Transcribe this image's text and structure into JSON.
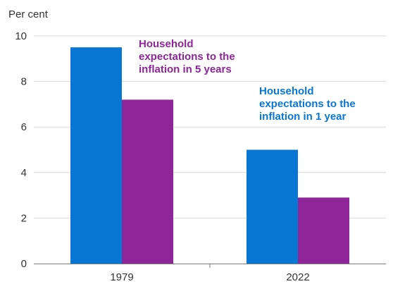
{
  "chart_data": {
    "type": "bar",
    "ylabel": "Per cent",
    "ylim": [
      0,
      10
    ],
    "yticks": [
      0,
      2,
      4,
      6,
      8,
      10
    ],
    "grid": true,
    "categories": [
      "1979",
      "2022"
    ],
    "series": [
      {
        "name": "Household expectations to the inflation in 1 year",
        "annotation_lines": [
          "Household",
          "expectations to the",
          "inflation in 1 year"
        ],
        "color": "#0877d3",
        "values": [
          9.5,
          5.0
        ]
      },
      {
        "name": "Household expectations to the inflation in 5 years",
        "annotation_lines": [
          "Household",
          "expectations to the",
          "inflation in 5 years"
        ],
        "color": "#8e2599",
        "values": [
          7.2,
          2.9
        ]
      }
    ]
  }
}
